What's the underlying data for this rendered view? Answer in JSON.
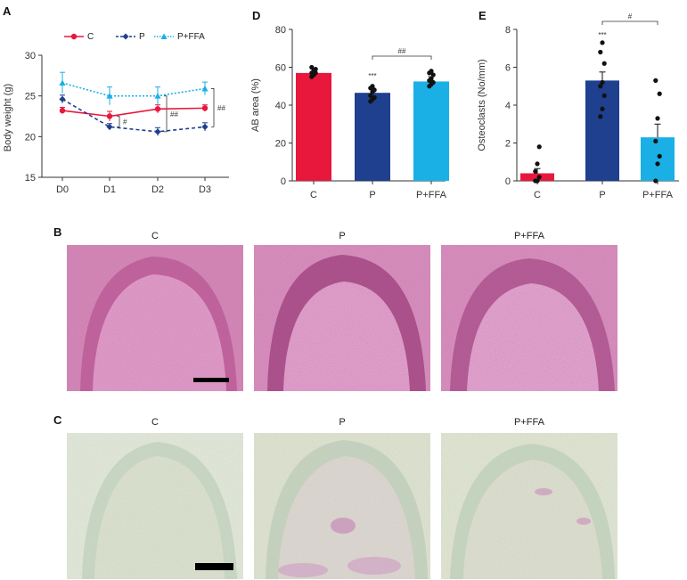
{
  "figure": {
    "panel_letters": {
      "a": "A",
      "b": "B",
      "c": "C",
      "d": "D",
      "e": "E"
    },
    "colors": {
      "C": "#e8183c",
      "P": "#1f3f8f",
      "PFFA": "#1ab0e6"
    }
  },
  "chart_data": [
    {
      "panel": "A",
      "type": "line",
      "ylabel": "Body weight (g)",
      "xlabel": "",
      "categories": [
        "D0",
        "D1",
        "D2",
        "D3"
      ],
      "yticks": [
        "15",
        "20",
        "25",
        "30"
      ],
      "ylim": [
        15,
        30
      ],
      "series": [
        {
          "name": "C",
          "values": [
            23.2,
            22.5,
            23.4,
            23.5
          ],
          "errors": [
            0.4,
            0.6,
            0.5,
            0.4
          ]
        },
        {
          "name": "P",
          "values": [
            24.6,
            21.2,
            20.6,
            21.2
          ],
          "errors": [
            0.5,
            0.4,
            0.5,
            0.5
          ]
        },
        {
          "name": "P+FFA",
          "values": [
            26.6,
            25.0,
            25.0,
            25.9
          ],
          "errors": [
            1.3,
            1.1,
            1.1,
            0.8
          ]
        }
      ],
      "annotations": [
        "#",
        "##",
        "##"
      ]
    },
    {
      "panel": "D",
      "type": "bar",
      "ylabel": "AB area (%)",
      "categories": [
        "C",
        "P",
        "P+FFA"
      ],
      "yticks": [
        "0",
        "20",
        "40",
        "60",
        "80"
      ],
      "ylim": [
        0,
        80
      ],
      "values": [
        57,
        46.5,
        52.5
      ],
      "errors": [
        2,
        2.5,
        2.5
      ],
      "points": [
        [
          55,
          56,
          57,
          57,
          58,
          59,
          60
        ],
        [
          42,
          43,
          44,
          45,
          47,
          48,
          49,
          50
        ],
        [
          50,
          51,
          52,
          53,
          54,
          56,
          57,
          58
        ]
      ],
      "annotations": [
        "***",
        "##"
      ]
    },
    {
      "panel": "E",
      "type": "bar",
      "ylabel": "Osteoclasts (No/mm)",
      "categories": [
        "C",
        "P",
        "P+FFA"
      ],
      "yticks": [
        "0",
        "2",
        "4",
        "6",
        "8"
      ],
      "ylim": [
        0,
        8
      ],
      "values": [
        0.4,
        5.3,
        2.3
      ],
      "errors": [
        0.25,
        0.45,
        0.7
      ],
      "points": [
        [
          0,
          0,
          0.2,
          0.5,
          0.9,
          1.8
        ],
        [
          3.4,
          3.8,
          4.5,
          5.0,
          5.2,
          6.2,
          6.8,
          7.3
        ],
        [
          0,
          0.9,
          1.3,
          2.1,
          3.3,
          4.6,
          5.3
        ]
      ],
      "annotations": [
        "***",
        "#"
      ]
    }
  ],
  "micrographs": {
    "B": {
      "titles": [
        "C",
        "P",
        "P+FFA"
      ]
    },
    "C": {
      "titles": [
        "C",
        "P",
        "P+FFA"
      ]
    }
  }
}
